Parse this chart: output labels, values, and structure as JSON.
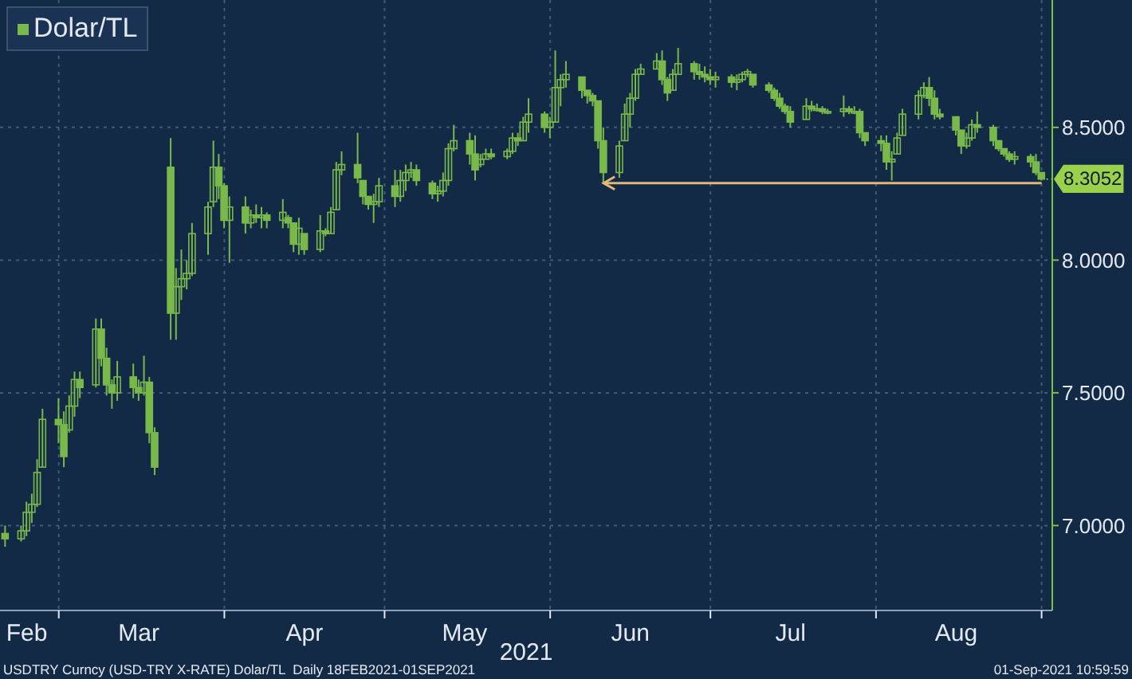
{
  "chart_data": {
    "type": "candlestick",
    "xlabel": "2021",
    "legend": "top left",
    "grid": true,
    "xlim": [
      "2021-02-18",
      "2021-09-03"
    ],
    "xticks": [
      {
        "value": "2021-02-23",
        "label": "Feb"
      },
      {
        "value": "2021-03-01",
        "label": null
      },
      {
        "value": "2021-03-16",
        "label": "Mar"
      },
      {
        "value": "2021-04-01",
        "label": null
      },
      {
        "value": "2021-04-16",
        "label": "Apr"
      },
      {
        "value": "2021-05-01",
        "label": null
      },
      {
        "value": "2021-05-16",
        "label": "May"
      },
      {
        "value": "2021-06-01",
        "label": null
      },
      {
        "value": "2021-06-16",
        "label": "Jun"
      },
      {
        "value": "2021-07-01",
        "label": null
      },
      {
        "value": "2021-07-16",
        "label": "Jul"
      },
      {
        "value": "2021-08-01",
        "label": null
      },
      {
        "value": "2021-08-16",
        "label": "Aug"
      },
      {
        "value": "2021-09-01",
        "label": null
      }
    ],
    "ylim": [
      6.68,
      8.98
    ],
    "yticks": [
      {
        "value": 7,
        "label": "7.0000"
      },
      {
        "value": 7.5,
        "label": "7.5000"
      },
      {
        "value": 8,
        "label": "8.0000"
      },
      {
        "value": 8.5,
        "label": "8.5000"
      }
    ],
    "ref_lines": [
      {
        "axis": "y",
        "value": 8.29,
        "color": "#e3b776"
      }
    ],
    "annotations": [
      {
        "text": "8.3052",
        "x": "2021-09-01",
        "y": 8.3052
      },
      "USDTRY Curncy (USD-TRY X-RATE) Dolar/TL  Daily 18FEB2021-01SEP2021",
      "01-Sep-2021 10:59:59"
    ],
    "x": [
      "2021-02-19",
      "2021-02-22",
      "2021-02-23",
      "2021-02-24",
      "2021-02-25",
      "2021-02-26",
      "2021-03-01",
      "2021-03-02",
      "2021-03-03",
      "2021-03-04",
      "2021-03-05",
      "2021-03-08",
      "2021-03-09",
      "2021-03-10",
      "2021-03-11",
      "2021-03-12",
      "2021-03-15",
      "2021-03-16",
      "2021-03-17",
      "2021-03-18",
      "2021-03-19",
      "2021-03-22",
      "2021-03-23",
      "2021-03-24",
      "2021-03-25",
      "2021-03-26",
      "2021-03-29",
      "2021-03-30",
      "2021-03-31",
      "2021-04-01",
      "2021-04-02",
      "2021-04-05",
      "2021-04-06",
      "2021-04-07",
      "2021-04-08",
      "2021-04-09",
      "2021-04-12",
      "2021-04-13",
      "2021-04-14",
      "2021-04-15",
      "2021-04-16",
      "2021-04-19",
      "2021-04-20",
      "2021-04-21",
      "2021-04-22",
      "2021-04-23",
      "2021-04-26",
      "2021-04-27",
      "2021-04-28",
      "2021-04-29",
      "2021-04-30",
      "2021-05-03",
      "2021-05-04",
      "2021-05-05",
      "2021-05-06",
      "2021-05-07",
      "2021-05-10",
      "2021-05-11",
      "2021-05-12",
      "2021-05-13",
      "2021-05-14",
      "2021-05-17",
      "2021-05-18",
      "2021-05-19",
      "2021-05-20",
      "2021-05-21",
      "2021-05-24",
      "2021-05-25",
      "2021-05-26",
      "2021-05-27",
      "2021-05-28",
      "2021-05-31",
      "2021-06-01",
      "2021-06-02",
      "2021-06-03",
      "2021-06-04",
      "2021-06-07",
      "2021-06-08",
      "2021-06-09",
      "2021-06-10",
      "2021-06-11",
      "2021-06-14",
      "2021-06-15",
      "2021-06-16",
      "2021-06-17",
      "2021-06-18",
      "2021-06-21",
      "2021-06-22",
      "2021-06-23",
      "2021-06-24",
      "2021-06-25",
      "2021-06-28",
      "2021-06-29",
      "2021-06-30",
      "2021-07-01",
      "2021-07-02",
      "2021-07-05",
      "2021-07-06",
      "2021-07-07",
      "2021-07-08",
      "2021-07-09",
      "2021-07-12",
      "2021-07-13",
      "2021-07-14",
      "2021-07-15",
      "2021-07-16",
      "2021-07-19",
      "2021-07-20",
      "2021-07-21",
      "2021-07-22",
      "2021-07-23",
      "2021-07-26",
      "2021-07-27",
      "2021-07-28",
      "2021-07-29",
      "2021-07-30",
      "2021-08-02",
      "2021-08-03",
      "2021-08-04",
      "2021-08-05",
      "2021-08-06",
      "2021-08-09",
      "2021-08-10",
      "2021-08-11",
      "2021-08-12",
      "2021-08-13",
      "2021-08-16",
      "2021-08-17",
      "2021-08-18",
      "2021-08-19",
      "2021-08-20",
      "2021-08-23",
      "2021-08-24",
      "2021-08-25",
      "2021-08-26",
      "2021-08-27",
      "2021-08-30",
      "2021-08-31",
      "2021-09-01"
    ],
    "series": [
      {
        "name": "Dolar/TL",
        "color": "#79b84a",
        "ohlc": [
          [
            6.97,
            7.0,
            6.92,
            6.95
          ],
          [
            6.95,
            7.0,
            6.94,
            6.98
          ],
          [
            6.98,
            7.09,
            6.96,
            7.05
          ],
          [
            7.05,
            7.12,
            7.01,
            7.08
          ],
          [
            7.08,
            7.25,
            7.07,
            7.2
          ],
          [
            7.22,
            7.44,
            7.22,
            7.4
          ],
          [
            7.4,
            7.48,
            7.31,
            7.38
          ],
          [
            7.38,
            7.43,
            7.22,
            7.26
          ],
          [
            7.36,
            7.49,
            7.35,
            7.45
          ],
          [
            7.45,
            7.58,
            7.41,
            7.55
          ],
          [
            7.55,
            7.58,
            7.48,
            7.52
          ],
          [
            7.53,
            7.78,
            7.52,
            7.74
          ],
          [
            7.74,
            7.78,
            7.6,
            7.63
          ],
          [
            7.63,
            7.67,
            7.49,
            7.53
          ],
          [
            7.53,
            7.55,
            7.44,
            7.5
          ],
          [
            7.5,
            7.62,
            7.47,
            7.56
          ],
          [
            7.56,
            7.61,
            7.48,
            7.52
          ],
          [
            7.52,
            7.55,
            7.47,
            7.5
          ],
          [
            7.5,
            7.64,
            7.49,
            7.54
          ],
          [
            7.54,
            7.56,
            7.31,
            7.35
          ],
          [
            7.35,
            7.37,
            7.19,
            7.22
          ],
          [
            8.35,
            8.46,
            7.7,
            7.8
          ],
          [
            7.8,
            7.97,
            7.7,
            7.9
          ],
          [
            7.9,
            8.04,
            7.85,
            7.93
          ],
          [
            7.93,
            8.0,
            7.89,
            7.95
          ],
          [
            7.95,
            8.14,
            7.94,
            8.1
          ],
          [
            8.1,
            8.22,
            8.02,
            8.2
          ],
          [
            8.22,
            8.45,
            8.2,
            8.35
          ],
          [
            8.35,
            8.4,
            8.23,
            8.28
          ],
          [
            8.28,
            8.29,
            8.12,
            8.15
          ],
          [
            8.15,
            8.24,
            7.99,
            8.2
          ],
          [
            8.2,
            8.24,
            8.1,
            8.14
          ],
          [
            8.14,
            8.19,
            8.12,
            8.17
          ],
          [
            8.17,
            8.21,
            8.14,
            8.16
          ],
          [
            8.16,
            8.2,
            8.12,
            8.17
          ],
          [
            8.17,
            8.18,
            8.12,
            8.15
          ],
          [
            8.15,
            8.23,
            8.12,
            8.18
          ],
          [
            8.16,
            8.17,
            8.12,
            8.14
          ],
          [
            8.14,
            8.14,
            8.03,
            8.06
          ],
          [
            8.06,
            8.16,
            8.02,
            8.12
          ],
          [
            8.1,
            8.1,
            8.02,
            8.04
          ],
          [
            8.04,
            8.17,
            8.03,
            8.11
          ],
          [
            8.11,
            8.12,
            8.09,
            8.1
          ],
          [
            8.1,
            8.2,
            8.1,
            8.18
          ],
          [
            8.19,
            8.37,
            8.19,
            8.34
          ],
          [
            8.34,
            8.41,
            8.32,
            8.36
          ],
          [
            8.36,
            8.48,
            8.29,
            8.31
          ],
          [
            8.3,
            8.3,
            8.21,
            8.24
          ],
          [
            8.24,
            8.24,
            8.19,
            8.21
          ],
          [
            8.21,
            8.25,
            8.14,
            8.22
          ],
          [
            8.22,
            8.31,
            8.2,
            8.28
          ],
          [
            8.28,
            8.34,
            8.2,
            8.24
          ],
          [
            8.24,
            8.34,
            8.22,
            8.3
          ],
          [
            8.3,
            8.36,
            8.26,
            8.33
          ],
          [
            8.33,
            8.37,
            8.31,
            8.34
          ],
          [
            8.34,
            8.36,
            8.28,
            8.3
          ],
          [
            8.29,
            8.3,
            8.23,
            8.25
          ],
          [
            8.25,
            8.28,
            8.22,
            8.26
          ],
          [
            8.26,
            8.33,
            8.24,
            8.3
          ],
          [
            8.3,
            8.44,
            8.28,
            8.42
          ],
          [
            8.42,
            8.51,
            8.41,
            8.45
          ],
          [
            8.45,
            8.48,
            8.36,
            8.4
          ],
          [
            8.4,
            8.47,
            8.3,
            8.34
          ],
          [
            8.36,
            8.4,
            8.35,
            8.38
          ],
          [
            8.38,
            8.42,
            8.38,
            8.4
          ],
          [
            8.4,
            8.42,
            8.38,
            8.39
          ],
          [
            8.39,
            8.42,
            8.38,
            8.41
          ],
          [
            8.41,
            8.48,
            8.4,
            8.46
          ],
          [
            8.46,
            8.48,
            8.43,
            8.45
          ],
          [
            8.45,
            8.54,
            8.45,
            8.52
          ],
          [
            8.52,
            8.61,
            8.48,
            8.55
          ],
          [
            8.55,
            8.56,
            8.48,
            8.5
          ],
          [
            8.5,
            8.54,
            8.46,
            8.52
          ],
          [
            8.52,
            8.79,
            8.52,
            8.65
          ],
          [
            8.65,
            8.7,
            8.58,
            8.68
          ],
          [
            8.68,
            8.75,
            8.65,
            8.7
          ],
          [
            8.69,
            8.69,
            8.61,
            8.64
          ],
          [
            8.64,
            8.64,
            8.59,
            8.62
          ],
          [
            8.62,
            8.63,
            8.58,
            8.6
          ],
          [
            8.6,
            8.6,
            8.42,
            8.45
          ],
          [
            8.45,
            8.5,
            8.29,
            8.33
          ],
          [
            8.33,
            8.45,
            8.31,
            8.43
          ],
          [
            8.45,
            8.59,
            8.45,
            8.55
          ],
          [
            8.55,
            8.63,
            8.5,
            8.61
          ],
          [
            8.61,
            8.72,
            8.6,
            8.7
          ],
          [
            8.7,
            8.74,
            8.7,
            8.72
          ],
          [
            8.72,
            8.78,
            8.72,
            8.75
          ],
          [
            8.75,
            8.79,
            8.66,
            8.68
          ],
          [
            8.68,
            8.69,
            8.6,
            8.63
          ],
          [
            8.64,
            8.72,
            8.64,
            8.7
          ],
          [
            8.7,
            8.8,
            8.7,
            8.74
          ],
          [
            8.74,
            8.75,
            8.68,
            8.71
          ],
          [
            8.71,
            8.74,
            8.68,
            8.7
          ],
          [
            8.7,
            8.73,
            8.67,
            8.69
          ],
          [
            8.69,
            8.72,
            8.66,
            8.68
          ],
          [
            8.68,
            8.71,
            8.65,
            8.69
          ],
          [
            8.69,
            8.7,
            8.65,
            8.67
          ],
          [
            8.67,
            8.7,
            8.64,
            8.68
          ],
          [
            8.68,
            8.71,
            8.67,
            8.7
          ],
          [
            8.7,
            8.72,
            8.69,
            8.71
          ],
          [
            8.7,
            8.7,
            8.65,
            8.66
          ],
          [
            8.66,
            8.67,
            8.63,
            8.64
          ],
          [
            8.64,
            8.65,
            8.6,
            8.61
          ],
          [
            8.61,
            8.63,
            8.57,
            8.58
          ],
          [
            8.58,
            8.59,
            8.55,
            8.56
          ],
          [
            8.56,
            8.58,
            8.5,
            8.52
          ],
          [
            8.53,
            8.61,
            8.53,
            8.58
          ],
          [
            8.58,
            8.6,
            8.56,
            8.57
          ],
          [
            8.57,
            8.59,
            8.56,
            8.57
          ],
          [
            8.57,
            8.58,
            8.55,
            8.56
          ],
          [
            8.56,
            8.57,
            8.55,
            8.56
          ],
          [
            8.56,
            8.62,
            8.54,
            8.57
          ],
          [
            8.57,
            8.58,
            8.55,
            8.56
          ],
          [
            8.56,
            8.58,
            8.55,
            8.56
          ],
          [
            8.56,
            8.57,
            8.46,
            8.48
          ],
          [
            8.48,
            8.48,
            8.43,
            8.45
          ],
          [
            8.45,
            8.47,
            8.41,
            8.44
          ],
          [
            8.44,
            8.47,
            8.34,
            8.37
          ],
          [
            8.37,
            8.41,
            8.3,
            8.38
          ],
          [
            8.4,
            8.48,
            8.4,
            8.46
          ],
          [
            8.47,
            8.57,
            8.47,
            8.55
          ],
          [
            8.55,
            8.64,
            8.53,
            8.62
          ],
          [
            8.62,
            8.67,
            8.61,
            8.65
          ],
          [
            8.65,
            8.69,
            8.58,
            8.61
          ],
          [
            8.61,
            8.64,
            8.53,
            8.55
          ],
          [
            8.55,
            8.57,
            8.53,
            8.54
          ],
          [
            8.54,
            8.54,
            8.47,
            8.49
          ],
          [
            8.49,
            8.49,
            8.4,
            8.43
          ],
          [
            8.43,
            8.48,
            8.42,
            8.46
          ],
          [
            8.46,
            8.53,
            8.45,
            8.51
          ],
          [
            8.51,
            8.56,
            8.48,
            8.5
          ],
          [
            8.5,
            8.51,
            8.43,
            8.45
          ],
          [
            8.45,
            8.45,
            8.41,
            8.42
          ],
          [
            8.42,
            8.42,
            8.39,
            8.4
          ],
          [
            8.4,
            8.41,
            8.37,
            8.38
          ],
          [
            8.38,
            8.41,
            8.36,
            8.39
          ],
          [
            8.39,
            8.4,
            8.35,
            8.37
          ],
          [
            8.37,
            8.4,
            8.32,
            8.33
          ],
          [
            8.33,
            8.33,
            8.3,
            8.3052
          ]
        ]
      }
    ]
  }
}
